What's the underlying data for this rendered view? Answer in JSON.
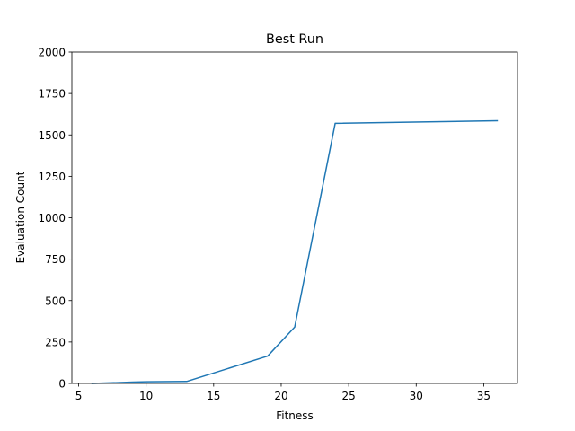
{
  "chart_data": {
    "type": "line",
    "title": "Best Run",
    "xlabel": "Fitness",
    "ylabel": "Evaluation Count",
    "xlim": [
      4.5,
      37.5
    ],
    "ylim": [
      0,
      2000
    ],
    "xticks": [
      5,
      10,
      15,
      20,
      25,
      30,
      35
    ],
    "yticks": [
      0,
      250,
      500,
      750,
      1000,
      1250,
      1500,
      1750,
      2000
    ],
    "grid": false,
    "series": [
      {
        "color": "#1f77b4",
        "x": [
          6,
          9,
          10,
          13,
          19,
          21,
          24,
          36
        ],
        "y": [
          0,
          8,
          10,
          12,
          165,
          340,
          1570,
          1585
        ]
      }
    ]
  }
}
